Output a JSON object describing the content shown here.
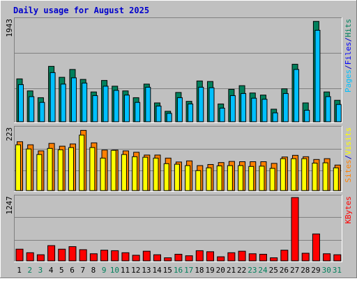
{
  "title": "Daily usage for August 2025",
  "colors": {
    "background": "#c0c0c0",
    "title": "#0000cc",
    "hits": "#00805c",
    "files": "#0000ff",
    "pages": "#00c0ff",
    "visits": "#ffff00",
    "sites": "#ff8000",
    "kbytes": "#ff0000",
    "weekend_label": "#00805c",
    "weekday_label": "#000000",
    "separator": "#0000cc"
  },
  "chart_data": [
    {
      "type": "bar",
      "panel": "hits-files-pages",
      "max_label": "1943",
      "legend": [
        "Pages",
        "Files",
        "Hits"
      ],
      "ylim": [
        0,
        1943
      ],
      "categories": [
        "1",
        "2",
        "3",
        "4",
        "5",
        "6",
        "7",
        "8",
        "9",
        "10",
        "11",
        "12",
        "13",
        "14",
        "15",
        "16",
        "17",
        "18",
        "19",
        "20",
        "21",
        "22",
        "23",
        "24",
        "25",
        "26",
        "27",
        "28",
        "29",
        "30",
        "31"
      ],
      "weekend_days": [
        "2",
        "3",
        "9",
        "10",
        "16",
        "17",
        "23",
        "24",
        "30",
        "31"
      ],
      "series": [
        {
          "name": "Hits",
          "values": [
            820,
            590,
            460,
            1060,
            850,
            1000,
            810,
            570,
            790,
            680,
            590,
            460,
            720,
            360,
            200,
            560,
            390,
            780,
            770,
            340,
            620,
            690,
            550,
            510,
            240,
            630,
            1100,
            360,
            1920,
            570,
            410
          ]
        },
        {
          "name": "Files",
          "values": [
            710,
            480,
            370,
            940,
            720,
            840,
            740,
            500,
            680,
            600,
            510,
            370,
            660,
            300,
            160,
            460,
            340,
            660,
            650,
            260,
            500,
            540,
            450,
            430,
            170,
            540,
            1000,
            220,
            1750,
            480,
            330
          ]
        },
        {
          "name": "Pages",
          "values": [
            710,
            480,
            370,
            940,
            720,
            840,
            740,
            500,
            680,
            600,
            510,
            370,
            660,
            300,
            160,
            460,
            340,
            660,
            650,
            260,
            500,
            540,
            450,
            430,
            170,
            540,
            1000,
            220,
            1750,
            480,
            330
          ]
        }
      ]
    },
    {
      "type": "bar",
      "panel": "visits-sites",
      "max_label": "223",
      "legend": [
        "Sites",
        "Visits"
      ],
      "ylim": [
        0,
        223
      ],
      "categories": [
        "1",
        "2",
        "3",
        "4",
        "5",
        "6",
        "7",
        "8",
        "9",
        "10",
        "11",
        "12",
        "13",
        "14",
        "15",
        "16",
        "17",
        "18",
        "19",
        "20",
        "21",
        "22",
        "23",
        "24",
        "25",
        "26",
        "27",
        "28",
        "29",
        "30",
        "31"
      ],
      "series": [
        {
          "name": "Sites",
          "values": [
            176,
            165,
            143,
            170,
            160,
            168,
            217,
            172,
            146,
            146,
            143,
            138,
            128,
            128,
            117,
            103,
            107,
            90,
            94,
            101,
            105,
            104,
            104,
            104,
            98,
            121,
            127,
            122,
            112,
            115,
            92
          ]
        },
        {
          "name": "Visits",
          "values": [
            165,
            150,
            130,
            152,
            147,
            155,
            200,
            155,
            117,
            145,
            130,
            122,
            120,
            117,
            97,
            95,
            90,
            72,
            82,
            89,
            90,
            90,
            87,
            88,
            80,
            115,
            115,
            115,
            99,
            100,
            82
          ]
        }
      ]
    },
    {
      "type": "bar",
      "panel": "kbytes",
      "max_label": "1247",
      "legend": [
        "KBytes"
      ],
      "ylim": [
        0,
        1247
      ],
      "categories": [
        "1",
        "2",
        "3",
        "4",
        "5",
        "6",
        "7",
        "8",
        "9",
        "10",
        "11",
        "12",
        "13",
        "14",
        "15",
        "16",
        "17",
        "18",
        "19",
        "20",
        "21",
        "22",
        "23",
        "24",
        "25",
        "26",
        "27",
        "28",
        "29",
        "30",
        "31"
      ],
      "series": [
        {
          "name": "KBytes",
          "values": [
            230,
            160,
            120,
            300,
            230,
            280,
            220,
            140,
            210,
            200,
            160,
            110,
            190,
            120,
            60,
            130,
            100,
            200,
            180,
            80,
            160,
            190,
            140,
            130,
            60,
            210,
            1247,
            150,
            530,
            140,
            120
          ]
        }
      ]
    }
  ]
}
